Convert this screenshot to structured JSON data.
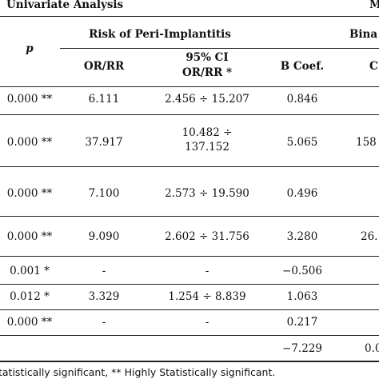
{
  "headers": {
    "univariate": "Univariate Analysis",
    "right_partial": "M",
    "p": "p",
    "risk": "Risk of Peri-Implantitis",
    "bina_partial": "Bina",
    "or_rr": "OR/RR",
    "ci_line1": "95% CI",
    "ci_line2": "OR/RR *",
    "b_coef": "B Coef.",
    "c_partial": "C"
  },
  "rows": [
    {
      "p": "0.000 **",
      "or": "6.111",
      "ci": "2.456 ÷ 15.207",
      "ci2": "",
      "b": "0.846",
      "extra": ""
    },
    {
      "p": "0.000 **",
      "or": "37.917",
      "ci": "10.482 ÷",
      "ci2": "137.152",
      "b": "5.065",
      "extra": "158"
    },
    {
      "p": "0.000 **",
      "or": "7.100",
      "ci": "2.573 ÷ 19.590",
      "ci2": "",
      "b": "0.496",
      "extra": ""
    },
    {
      "p": "0.000 **",
      "or": "9.090",
      "ci": "2.602 ÷ 31.756",
      "ci2": "",
      "b": "3.280",
      "extra": "26."
    },
    {
      "p": "0.001 *",
      "or": "-",
      "ci": "-",
      "ci2": "",
      "b": "−0.506",
      "extra": ""
    },
    {
      "p": "0.012 *",
      "or": "3.329",
      "ci": "1.254 ÷ 8.839",
      "ci2": "",
      "b": "1.063",
      "extra": ""
    },
    {
      "p": "0.000 **",
      "or": "-",
      "ci": "-",
      "ci2": "",
      "b": "0.217",
      "extra": ""
    },
    {
      "p": "",
      "or": "",
      "ci": "",
      "ci2": "",
      "b": "−7.229",
      "extra": "0.0"
    }
  ],
  "footnote": "tatistically significant, ** Highly Statistically significant."
}
